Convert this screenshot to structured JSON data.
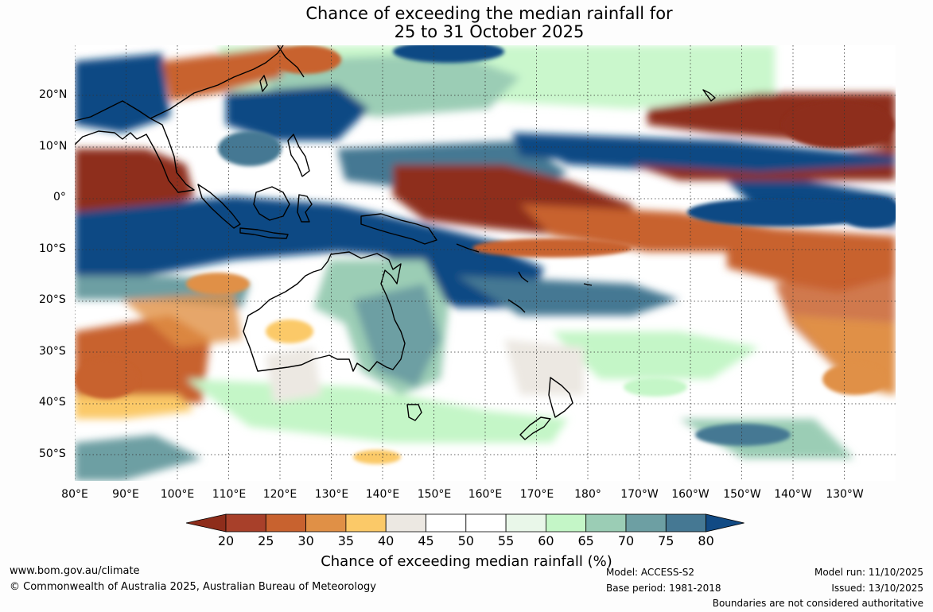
{
  "title": {
    "line1": "Chance of exceeding the median rainfall for",
    "line2": "25 to 31 October 2025"
  },
  "map": {
    "lon_labels": [
      "80°E",
      "90°E",
      "100°E",
      "110°E",
      "120°E",
      "130°E",
      "140°E",
      "150°E",
      "160°E",
      "170°E",
      "180°",
      "170°W",
      "160°W",
      "150°W",
      "140°W",
      "130°W"
    ],
    "lat_labels": [
      "20°N",
      "10°N",
      "0°",
      "10°S",
      "20°S",
      "30°S",
      "40°S",
      "50°S"
    ],
    "lon_values": [
      80,
      90,
      100,
      110,
      120,
      130,
      140,
      150,
      160,
      170,
      180,
      190,
      200,
      210,
      220,
      230
    ],
    "lat_values": [
      20,
      10,
      0,
      -10,
      -20,
      -30,
      -40,
      -50
    ],
    "lon_range": [
      80,
      240
    ],
    "lat_range": [
      -55,
      30
    ]
  },
  "colorbar": {
    "title": "Chance of exceeding median rainfall (%)",
    "ticks": [
      "20",
      "25",
      "30",
      "35",
      "40",
      "45",
      "50",
      "55",
      "60",
      "65",
      "70",
      "75",
      "80"
    ],
    "colors": [
      "#8e2d1b",
      "#a8402a",
      "#c8622f",
      "#e09046",
      "#fbc968",
      "#ece8e2",
      "#ffffff",
      "#ffffff",
      "#e9f7e9",
      "#c4f6c7",
      "#9bcdb5",
      "#6d9fa3",
      "#457893",
      "#114a84"
    ]
  },
  "footer": {
    "website": "www.bom.gov.au/climate",
    "copyright": "© Commonwealth of Australia 2025, Australian Bureau of Meteorology",
    "model": "Model: ACCESS-S2",
    "base_period": "Base period: 1981-2018",
    "model_run": "Model run: 11/10/2025",
    "issued": "Issued: 13/10/2025",
    "disclaimer": "Boundaries are not considered authoritative"
  },
  "colors": {
    "dry_strong": "#8e2d1b",
    "dry": "#c8622f",
    "wet": "#6d9fa3",
    "wet_strong": "#114a84"
  }
}
